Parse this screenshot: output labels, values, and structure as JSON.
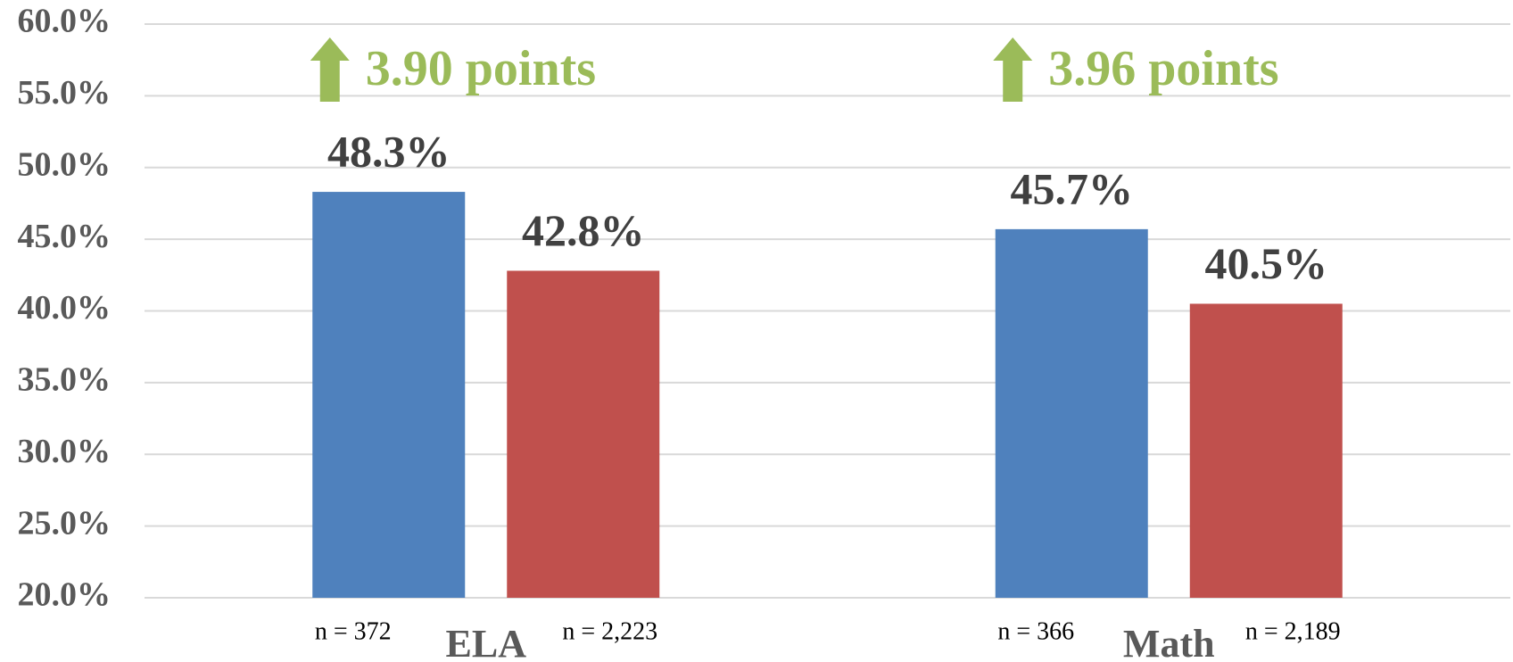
{
  "chart_data": {
    "type": "bar",
    "categories": [
      "ELA",
      "Math"
    ],
    "series": [
      {
        "color": "#4f81bd",
        "values": [
          48.3,
          45.7
        ],
        "value_labels": [
          "48.3%",
          "45.7%"
        ],
        "n_labels": [
          "n = 372",
          "n = 366"
        ]
      },
      {
        "color": "#c0504d",
        "values": [
          42.8,
          40.5
        ],
        "value_labels": [
          "42.8%",
          "40.5%"
        ],
        "n_labels": [
          "n = 2,223",
          "n = 2,189"
        ]
      }
    ],
    "annotations": [
      "3.90 points",
      "3.96 points"
    ],
    "annotation_color": "#9bbb59",
    "ylim": [
      20,
      60
    ],
    "yticks": [
      {
        "value": 20,
        "label": "20.0%"
      },
      {
        "value": 25,
        "label": "25.0%"
      },
      {
        "value": 30,
        "label": "30.0%"
      },
      {
        "value": 35,
        "label": "35.0%"
      },
      {
        "value": 40,
        "label": "40.0%"
      },
      {
        "value": 45,
        "label": "45.0%"
      },
      {
        "value": 50,
        "label": "50.0%"
      },
      {
        "value": 55,
        "label": "55.0%"
      },
      {
        "value": 60,
        "label": "60.0%"
      }
    ],
    "grid": true
  }
}
